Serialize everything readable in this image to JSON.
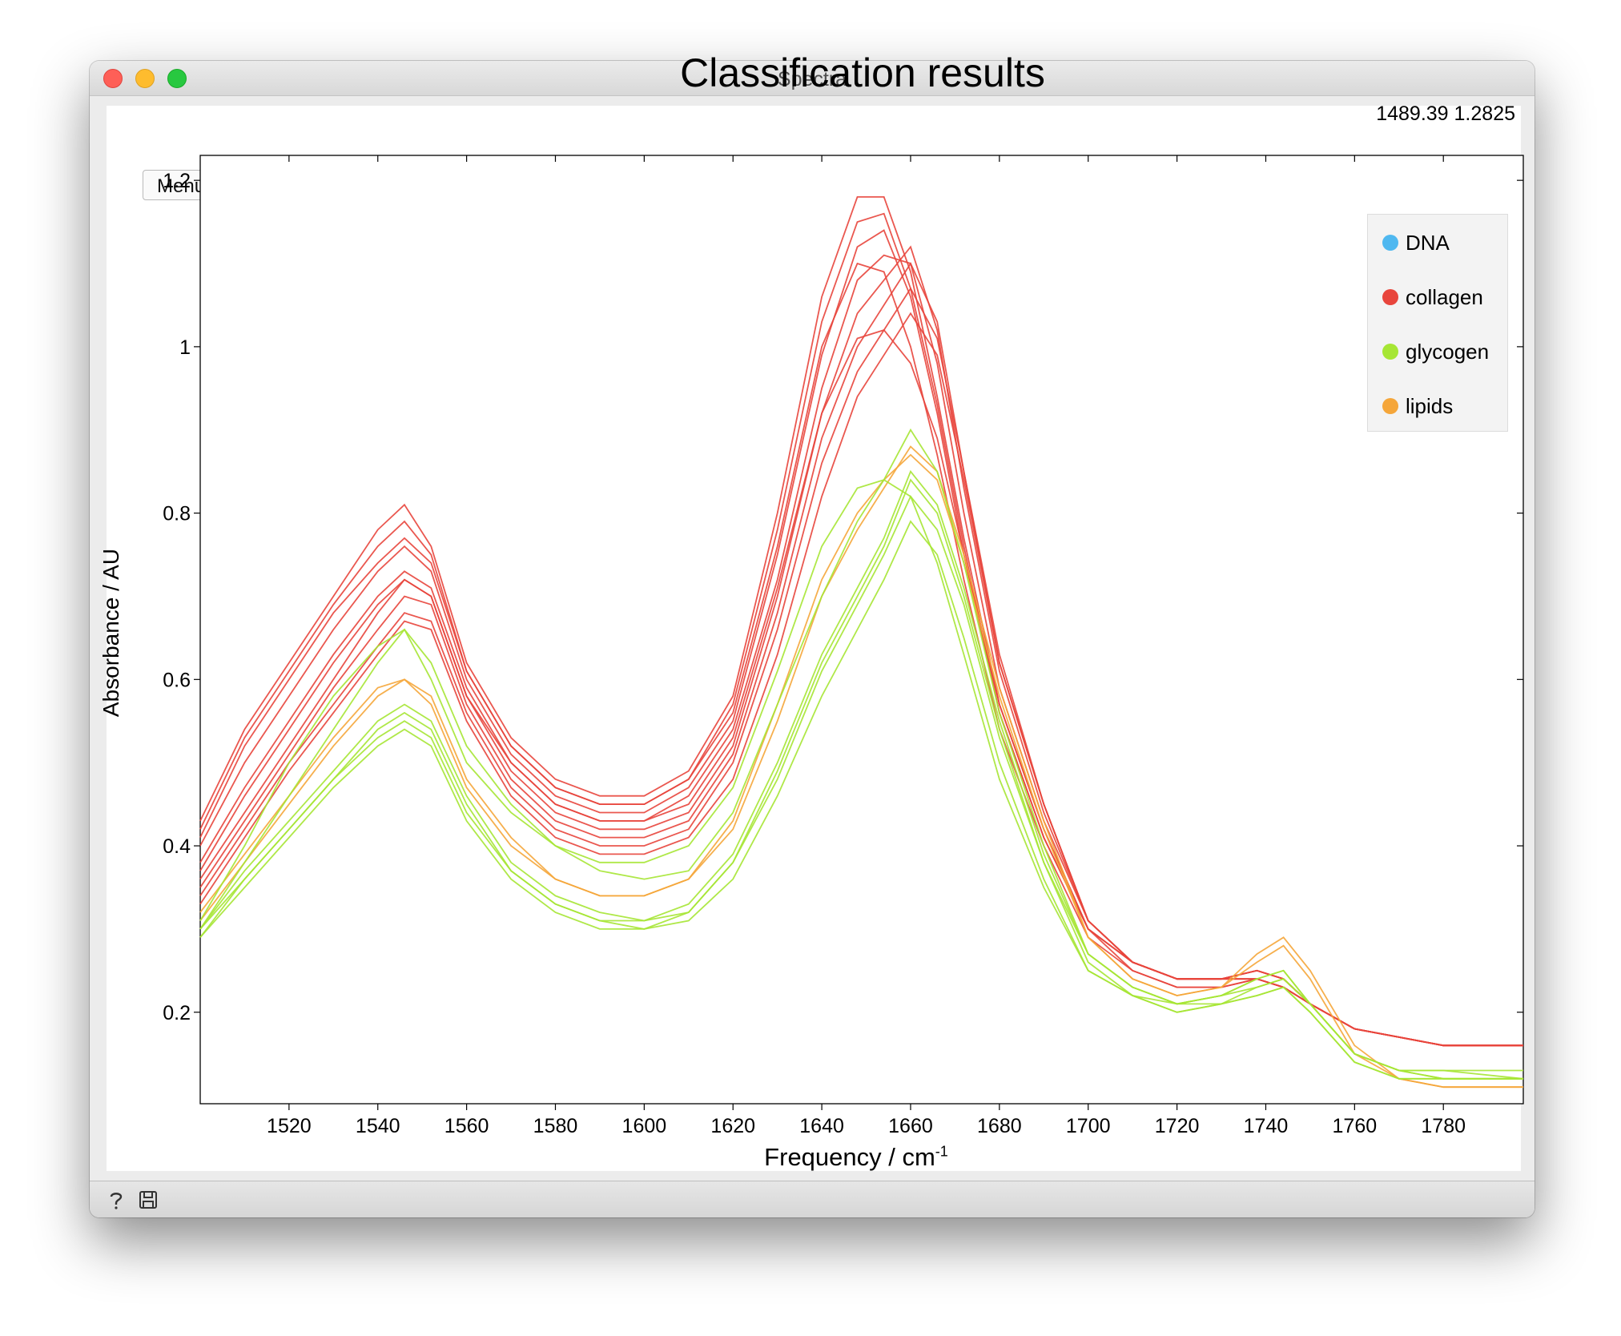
{
  "window": {
    "title": "Spectra"
  },
  "menu": {
    "label": "Menu"
  },
  "plot": {
    "title": "Classification results",
    "coordinate_readout": "1489.39 1.2825",
    "xlabel_text": "Frequency / cm",
    "xlabel_superscript": "-1",
    "ylabel": "Absorbance / AU"
  },
  "legend": [
    {
      "label": "DNA",
      "color": "#4fb8f0"
    },
    {
      "label": "collagen",
      "color": "#e8453c"
    },
    {
      "label": "glycogen",
      "color": "#a6e634"
    },
    {
      "label": "lipids",
      "color": "#f5a63a"
    }
  ],
  "bottombar": {
    "icons": [
      "help-icon",
      "save-icon"
    ]
  },
  "chart_data": {
    "type": "line",
    "title": "Classification results",
    "xlabel": "Frequency / cm-1",
    "ylabel": "Absorbance / AU",
    "xlim": [
      1500,
      1798
    ],
    "ylim": [
      0.09,
      1.23
    ],
    "x_ticks": [
      1520,
      1540,
      1560,
      1580,
      1600,
      1620,
      1640,
      1660,
      1680,
      1700,
      1720,
      1740,
      1760,
      1780
    ],
    "y_ticks": [
      0.2,
      0.4,
      0.6,
      0.8,
      1,
      1.2
    ],
    "y_tick_labels": [
      "0.2",
      "0.4",
      "0.6",
      "0.8",
      "1",
      "1.2"
    ],
    "x": [
      1500,
      1510,
      1520,
      1530,
      1540,
      1546,
      1552,
      1560,
      1570,
      1580,
      1590,
      1600,
      1610,
      1620,
      1630,
      1640,
      1648,
      1654,
      1660,
      1666,
      1672,
      1680,
      1690,
      1700,
      1710,
      1720,
      1730,
      1738,
      1744,
      1750,
      1760,
      1770,
      1780,
      1798
    ],
    "series": [
      {
        "class": "collagen",
        "color": "#e8453c",
        "values": [
          0.43,
          0.54,
          0.62,
          0.7,
          0.78,
          0.81,
          0.76,
          0.62,
          0.53,
          0.48,
          0.46,
          0.46,
          0.49,
          0.58,
          0.8,
          1.06,
          1.18,
          1.18,
          1.09,
          0.94,
          0.77,
          0.57,
          0.42,
          0.3,
          0.26,
          0.24,
          0.24,
          0.24,
          0.23,
          0.21,
          0.18,
          0.17,
          0.16,
          0.16
        ]
      },
      {
        "class": "collagen",
        "color": "#e8453c",
        "values": [
          0.42,
          0.53,
          0.61,
          0.69,
          0.76,
          0.79,
          0.75,
          0.61,
          0.52,
          0.47,
          0.45,
          0.45,
          0.48,
          0.57,
          0.78,
          1.03,
          1.15,
          1.16,
          1.07,
          0.93,
          0.76,
          0.56,
          0.41,
          0.3,
          0.26,
          0.24,
          0.24,
          0.24,
          0.23,
          0.21,
          0.18,
          0.17,
          0.16,
          0.16
        ]
      },
      {
        "class": "collagen",
        "color": "#e8453c",
        "values": [
          0.4,
          0.5,
          0.58,
          0.66,
          0.73,
          0.76,
          0.73,
          0.6,
          0.51,
          0.46,
          0.44,
          0.44,
          0.47,
          0.55,
          0.75,
          0.99,
          1.12,
          1.14,
          1.06,
          0.92,
          0.75,
          0.56,
          0.41,
          0.3,
          0.26,
          0.24,
          0.24,
          0.24,
          0.23,
          0.21,
          0.18,
          0.17,
          0.16,
          0.16
        ]
      },
      {
        "class": "collagen",
        "color": "#e8453c",
        "values": [
          0.38,
          0.47,
          0.55,
          0.63,
          0.7,
          0.73,
          0.71,
          0.59,
          0.5,
          0.45,
          0.43,
          0.43,
          0.46,
          0.54,
          0.72,
          0.95,
          1.08,
          1.11,
          1.1,
          0.98,
          0.8,
          0.59,
          0.43,
          0.31,
          0.26,
          0.24,
          0.24,
          0.25,
          0.24,
          0.21,
          0.18,
          0.17,
          0.16,
          0.16
        ]
      },
      {
        "class": "collagen",
        "color": "#e8453c",
        "values": [
          0.36,
          0.44,
          0.52,
          0.6,
          0.68,
          0.72,
          0.7,
          0.58,
          0.49,
          0.44,
          0.42,
          0.42,
          0.44,
          0.52,
          0.7,
          0.92,
          1.04,
          1.08,
          1.12,
          1.02,
          0.83,
          0.61,
          0.44,
          0.31,
          0.26,
          0.24,
          0.24,
          0.25,
          0.24,
          0.21,
          0.18,
          0.17,
          0.16,
          0.16
        ]
      },
      {
        "class": "collagen",
        "color": "#e8453c",
        "values": [
          0.35,
          0.43,
          0.51,
          0.59,
          0.66,
          0.7,
          0.69,
          0.57,
          0.48,
          0.43,
          0.41,
          0.41,
          0.43,
          0.51,
          0.68,
          0.89,
          1.0,
          1.05,
          1.1,
          1.03,
          0.85,
          0.62,
          0.45,
          0.31,
          0.26,
          0.24,
          0.24,
          0.25,
          0.24,
          0.21,
          0.18,
          0.17,
          0.16,
          0.16
        ]
      },
      {
        "class": "collagen",
        "color": "#e8453c",
        "values": [
          0.34,
          0.42,
          0.5,
          0.57,
          0.64,
          0.68,
          0.67,
          0.56,
          0.47,
          0.42,
          0.4,
          0.4,
          0.42,
          0.5,
          0.66,
          0.86,
          0.97,
          1.02,
          1.07,
          1.01,
          0.85,
          0.63,
          0.45,
          0.31,
          0.26,
          0.24,
          0.24,
          0.25,
          0.24,
          0.21,
          0.18,
          0.17,
          0.16,
          0.16
        ]
      },
      {
        "class": "collagen",
        "color": "#e8453c",
        "values": [
          0.33,
          0.41,
          0.49,
          0.56,
          0.63,
          0.67,
          0.66,
          0.55,
          0.46,
          0.41,
          0.39,
          0.39,
          0.41,
          0.48,
          0.63,
          0.82,
          0.94,
          0.99,
          1.04,
          0.99,
          0.84,
          0.62,
          0.45,
          0.31,
          0.26,
          0.24,
          0.24,
          0.25,
          0.24,
          0.21,
          0.18,
          0.17,
          0.16,
          0.16
        ]
      },
      {
        "class": "collagen",
        "color": "#e8453c",
        "values": [
          0.41,
          0.52,
          0.6,
          0.68,
          0.74,
          0.77,
          0.74,
          0.61,
          0.52,
          0.47,
          0.45,
          0.45,
          0.48,
          0.56,
          0.76,
          1.0,
          1.1,
          1.09,
          1.0,
          0.87,
          0.72,
          0.54,
          0.4,
          0.29,
          0.25,
          0.23,
          0.23,
          0.24,
          0.23,
          0.21,
          0.18,
          0.17,
          0.16,
          0.16
        ]
      },
      {
        "class": "collagen",
        "color": "#e8453c",
        "values": [
          0.37,
          0.46,
          0.54,
          0.62,
          0.69,
          0.72,
          0.7,
          0.58,
          0.5,
          0.45,
          0.43,
          0.43,
          0.45,
          0.53,
          0.71,
          0.92,
          1.01,
          1.02,
          0.98,
          0.89,
          0.75,
          0.57,
          0.42,
          0.3,
          0.25,
          0.23,
          0.23,
          0.24,
          0.23,
          0.21,
          0.18,
          0.17,
          0.16,
          0.16
        ]
      },
      {
        "class": "lipids",
        "color": "#f5a63a",
        "values": [
          0.32,
          0.39,
          0.46,
          0.53,
          0.59,
          0.6,
          0.58,
          0.48,
          0.41,
          0.36,
          0.34,
          0.34,
          0.36,
          0.43,
          0.57,
          0.72,
          0.8,
          0.84,
          0.87,
          0.84,
          0.74,
          0.58,
          0.42,
          0.29,
          0.24,
          0.22,
          0.23,
          0.27,
          0.29,
          0.25,
          0.16,
          0.12,
          0.11,
          0.11
        ]
      },
      {
        "class": "lipids",
        "color": "#f5a63a",
        "values": [
          0.31,
          0.38,
          0.45,
          0.52,
          0.58,
          0.6,
          0.57,
          0.47,
          0.4,
          0.36,
          0.34,
          0.34,
          0.36,
          0.42,
          0.55,
          0.7,
          0.78,
          0.83,
          0.88,
          0.85,
          0.75,
          0.59,
          0.43,
          0.29,
          0.24,
          0.22,
          0.23,
          0.26,
          0.28,
          0.24,
          0.15,
          0.12,
          0.11,
          0.11
        ]
      },
      {
        "class": "glycogen",
        "color": "#a6e634",
        "values": [
          0.3,
          0.37,
          0.43,
          0.49,
          0.55,
          0.57,
          0.55,
          0.46,
          0.38,
          0.34,
          0.32,
          0.31,
          0.33,
          0.39,
          0.5,
          0.63,
          0.71,
          0.77,
          0.85,
          0.81,
          0.71,
          0.55,
          0.39,
          0.27,
          0.23,
          0.21,
          0.22,
          0.24,
          0.25,
          0.21,
          0.15,
          0.13,
          0.13,
          0.13
        ]
      },
      {
        "class": "glycogen",
        "color": "#a6e634",
        "values": [
          0.3,
          0.36,
          0.42,
          0.48,
          0.54,
          0.56,
          0.54,
          0.45,
          0.37,
          0.33,
          0.31,
          0.31,
          0.32,
          0.38,
          0.49,
          0.62,
          0.7,
          0.76,
          0.84,
          0.8,
          0.7,
          0.54,
          0.38,
          0.27,
          0.23,
          0.21,
          0.22,
          0.24,
          0.25,
          0.21,
          0.15,
          0.13,
          0.13,
          0.12
        ]
      },
      {
        "class": "glycogen",
        "color": "#a6e634",
        "values": [
          0.29,
          0.36,
          0.42,
          0.48,
          0.53,
          0.55,
          0.53,
          0.44,
          0.37,
          0.33,
          0.31,
          0.3,
          0.32,
          0.38,
          0.48,
          0.61,
          0.69,
          0.75,
          0.82,
          0.78,
          0.69,
          0.53,
          0.38,
          0.26,
          0.22,
          0.21,
          0.21,
          0.23,
          0.24,
          0.21,
          0.15,
          0.13,
          0.12,
          0.12
        ]
      },
      {
        "class": "glycogen",
        "color": "#a6e634",
        "values": [
          0.3,
          0.38,
          0.46,
          0.54,
          0.62,
          0.66,
          0.62,
          0.52,
          0.45,
          0.4,
          0.37,
          0.36,
          0.37,
          0.44,
          0.57,
          0.7,
          0.79,
          0.84,
          0.9,
          0.85,
          0.74,
          0.56,
          0.4,
          0.27,
          0.23,
          0.21,
          0.22,
          0.23,
          0.24,
          0.21,
          0.15,
          0.13,
          0.12,
          0.12
        ]
      },
      {
        "class": "glycogen",
        "color": "#a6e634",
        "values": [
          0.29,
          0.35,
          0.41,
          0.47,
          0.52,
          0.54,
          0.52,
          0.43,
          0.36,
          0.32,
          0.3,
          0.3,
          0.31,
          0.36,
          0.46,
          0.58,
          0.66,
          0.72,
          0.79,
          0.75,
          0.65,
          0.5,
          0.36,
          0.25,
          0.22,
          0.2,
          0.21,
          0.22,
          0.23,
          0.2,
          0.14,
          0.12,
          0.12,
          0.12
        ]
      },
      {
        "class": "glycogen",
        "color": "#a6e634",
        "values": [
          0.31,
          0.4,
          0.5,
          0.58,
          0.64,
          0.66,
          0.6,
          0.5,
          0.44,
          0.4,
          0.38,
          0.38,
          0.4,
          0.47,
          0.61,
          0.76,
          0.83,
          0.84,
          0.82,
          0.74,
          0.63,
          0.48,
          0.35,
          0.25,
          0.22,
          0.2,
          0.21,
          0.22,
          0.23,
          0.2,
          0.14,
          0.12,
          0.12,
          0.12
        ]
      }
    ]
  }
}
